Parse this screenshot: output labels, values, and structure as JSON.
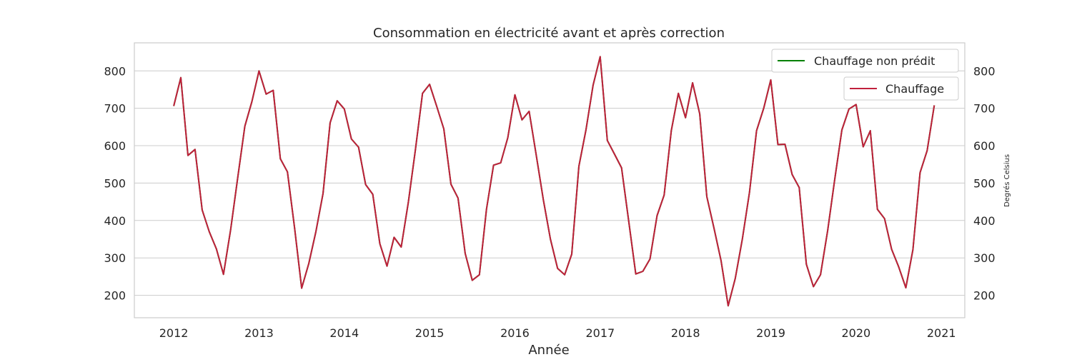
{
  "chart_data": {
    "type": "line",
    "title": "Consommation en électricité avant et après correction",
    "xlabel": "Année",
    "ylabel_left": "",
    "ylabel_right": "Degrés Celsius",
    "xlim": [
      "2011-07-15",
      "2021-04-10"
    ],
    "ylim": [
      140,
      875
    ],
    "x_ticks": [
      "2012",
      "2013",
      "2014",
      "2015",
      "2016",
      "2017",
      "2018",
      "2019",
      "2020",
      "2021"
    ],
    "y_ticks": [
      200,
      300,
      400,
      500,
      600,
      700,
      800
    ],
    "grid": true,
    "legend_placement": "top-right",
    "colors": {
      "chauffage_non_predit": "#008000",
      "chauffage": "#c0203c"
    },
    "series": [
      {
        "name": "Chauffage non prédit",
        "color": "#008000",
        "x": [
          "2012-01",
          "2012-02",
          "2012-03",
          "2012-04",
          "2012-05",
          "2012-06",
          "2012-07",
          "2012-08",
          "2012-09",
          "2012-10",
          "2012-11",
          "2012-12",
          "2013-01",
          "2013-02",
          "2013-03",
          "2013-04",
          "2013-05",
          "2013-06",
          "2013-07",
          "2013-08",
          "2013-09",
          "2013-10",
          "2013-11",
          "2013-12",
          "2014-01",
          "2014-02",
          "2014-03",
          "2014-04",
          "2014-05",
          "2014-06",
          "2014-07",
          "2014-08",
          "2014-09",
          "2014-10",
          "2014-11",
          "2014-12",
          "2015-01",
          "2015-02",
          "2015-03",
          "2015-04",
          "2015-05",
          "2015-06",
          "2015-07",
          "2015-08",
          "2015-09",
          "2015-10",
          "2015-11",
          "2015-12",
          "2016-01",
          "2016-02",
          "2016-03",
          "2016-04",
          "2016-05",
          "2016-06",
          "2016-07",
          "2016-08",
          "2016-09",
          "2016-10",
          "2016-11",
          "2016-12",
          "2017-01",
          "2017-02",
          "2017-03",
          "2017-04",
          "2017-05",
          "2017-06",
          "2017-07",
          "2017-08",
          "2017-09",
          "2017-10",
          "2017-11",
          "2017-12",
          "2018-01",
          "2018-02",
          "2018-03",
          "2018-04",
          "2018-05",
          "2018-06",
          "2018-07",
          "2018-08",
          "2018-09",
          "2018-10",
          "2018-11",
          "2018-12",
          "2019-01",
          "2019-02",
          "2019-03",
          "2019-04",
          "2019-05",
          "2019-06",
          "2019-07",
          "2019-08",
          "2019-09",
          "2019-10",
          "2019-11",
          "2019-12",
          "2020-01",
          "2020-02",
          "2020-03",
          "2020-04",
          "2020-05",
          "2020-06",
          "2020-07",
          "2020-08",
          "2020-09",
          "2020-10",
          "2020-11",
          "2020-12"
        ],
        "values": [
          706,
          782,
          574,
          590,
          428,
          370,
          324,
          256,
          375,
          514,
          652,
          718,
          800,
          738,
          748,
          565,
          530,
          380,
          219,
          285,
          370,
          472,
          661,
          720,
          698,
          618,
          596,
          496,
          470,
          338,
          278,
          355,
          329,
          448,
          588,
          740,
          764,
          705,
          645,
          497,
          460,
          312,
          240,
          255,
          430,
          548,
          554,
          621,
          736,
          669,
          692,
          575,
          455,
          350,
          272,
          255,
          310,
          545,
          642,
          762,
          838,
          614,
          578,
          541,
          400,
          257,
          264,
          297,
          413,
          468,
          640,
          740,
          675,
          768,
          685,
          464,
          380,
          293,
          172,
          245,
          350,
          475,
          640,
          700,
          776,
          603,
          604,
          523,
          488,
          283,
          223,
          255,
          373,
          510,
          642,
          698,
          710,
          597,
          640,
          430,
          405,
          323,
          276,
          220,
          322,
          528,
          587,
          708
        ]
      },
      {
        "name": "Chauffage",
        "color": "#c0203c",
        "x": [
          "2012-01",
          "2012-02",
          "2012-03",
          "2012-04",
          "2012-05",
          "2012-06",
          "2012-07",
          "2012-08",
          "2012-09",
          "2012-10",
          "2012-11",
          "2012-12",
          "2013-01",
          "2013-02",
          "2013-03",
          "2013-04",
          "2013-05",
          "2013-06",
          "2013-07",
          "2013-08",
          "2013-09",
          "2013-10",
          "2013-11",
          "2013-12",
          "2014-01",
          "2014-02",
          "2014-03",
          "2014-04",
          "2014-05",
          "2014-06",
          "2014-07",
          "2014-08",
          "2014-09",
          "2014-10",
          "2014-11",
          "2014-12",
          "2015-01",
          "2015-02",
          "2015-03",
          "2015-04",
          "2015-05",
          "2015-06",
          "2015-07",
          "2015-08",
          "2015-09",
          "2015-10",
          "2015-11",
          "2015-12",
          "2016-01",
          "2016-02",
          "2016-03",
          "2016-04",
          "2016-05",
          "2016-06",
          "2016-07",
          "2016-08",
          "2016-09",
          "2016-10",
          "2016-11",
          "2016-12",
          "2017-01",
          "2017-02",
          "2017-03",
          "2017-04",
          "2017-05",
          "2017-06",
          "2017-07",
          "2017-08",
          "2017-09",
          "2017-10",
          "2017-11",
          "2017-12",
          "2018-01",
          "2018-02",
          "2018-03",
          "2018-04",
          "2018-05",
          "2018-06",
          "2018-07",
          "2018-08",
          "2018-09",
          "2018-10",
          "2018-11",
          "2018-12",
          "2019-01",
          "2019-02",
          "2019-03",
          "2019-04",
          "2019-05",
          "2019-06",
          "2019-07",
          "2019-08",
          "2019-09",
          "2019-10",
          "2019-11",
          "2019-12",
          "2020-01",
          "2020-02",
          "2020-03",
          "2020-04",
          "2020-05",
          "2020-06",
          "2020-07",
          "2020-08",
          "2020-09",
          "2020-10",
          "2020-11",
          "2020-12"
        ],
        "values": [
          706,
          782,
          574,
          590,
          428,
          370,
          324,
          256,
          375,
          514,
          652,
          718,
          800,
          738,
          748,
          565,
          530,
          380,
          219,
          285,
          370,
          472,
          661,
          720,
          698,
          618,
          596,
          496,
          470,
          338,
          278,
          355,
          329,
          448,
          588,
          740,
          764,
          705,
          645,
          497,
          460,
          312,
          240,
          255,
          430,
          548,
          554,
          621,
          736,
          669,
          692,
          575,
          455,
          350,
          272,
          255,
          310,
          545,
          642,
          762,
          838,
          614,
          578,
          541,
          400,
          257,
          264,
          297,
          413,
          468,
          640,
          740,
          675,
          768,
          685,
          464,
          380,
          293,
          172,
          245,
          350,
          475,
          640,
          700,
          776,
          603,
          604,
          523,
          488,
          283,
          223,
          255,
          373,
          510,
          642,
          698,
          710,
          597,
          640,
          430,
          405,
          323,
          276,
          220,
          322,
          528,
          587,
          708
        ]
      }
    ]
  }
}
